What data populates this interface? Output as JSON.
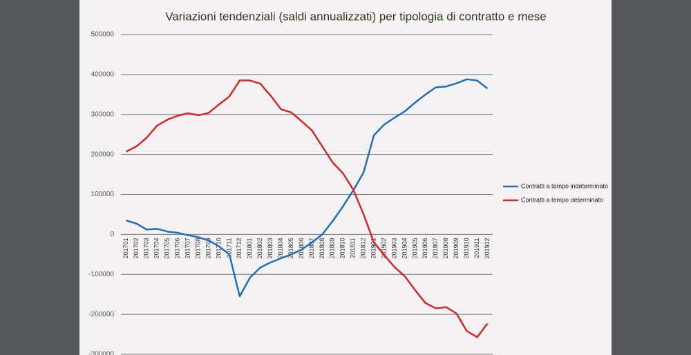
{
  "chart_data": {
    "type": "line",
    "title": "Variazioni tendenziali (saldi annualizzati) per tipologia di contratto e mese",
    "categories": [
      "201701",
      "201702",
      "201703",
      "201704",
      "201705",
      "201706",
      "201707",
      "201708",
      "201709",
      "201710",
      "201711",
      "201712",
      "201801",
      "201802",
      "201803",
      "201804",
      "201805",
      "201806",
      "201807",
      "201808",
      "201809",
      "201810",
      "201811",
      "201812",
      "201901",
      "201902",
      "201903",
      "201904",
      "201905",
      "201906",
      "201907",
      "201908",
      "201909",
      "201910",
      "201911",
      "201912"
    ],
    "series": [
      {
        "name": "Contratti a tempo indeterminato",
        "color": "#1f6fc0",
        "values": [
          35000,
          27000,
          12000,
          14000,
          7000,
          4000,
          -2000,
          -7000,
          -15000,
          -30000,
          -50000,
          -155000,
          -108000,
          -83000,
          -70000,
          -60000,
          -50000,
          -38000,
          -20000,
          0,
          33000,
          70000,
          110000,
          155000,
          248000,
          275000,
          292000,
          308000,
          330000,
          350000,
          368000,
          370000,
          378000,
          388000,
          385000,
          365000
        ]
      },
      {
        "name": "Contratti a tempo determinato",
        "color": "#d9262a",
        "values": [
          207000,
          220000,
          242000,
          272000,
          287000,
          297000,
          303000,
          298000,
          304000,
          325000,
          345000,
          385000,
          385000,
          377000,
          347000,
          313000,
          305000,
          283000,
          260000,
          220000,
          180000,
          153000,
          112000,
          50000,
          -20000,
          -52000,
          -82000,
          -105000,
          -140000,
          -172000,
          -185000,
          -182000,
          -198000,
          -242000,
          -257000,
          -223000
        ]
      }
    ],
    "ylim": [
      -300000,
      500000
    ],
    "yticks": [
      -300000,
      -200000,
      -100000,
      0,
      100000,
      200000,
      300000,
      400000,
      500000
    ],
    "grid": true,
    "legend": "right"
  }
}
